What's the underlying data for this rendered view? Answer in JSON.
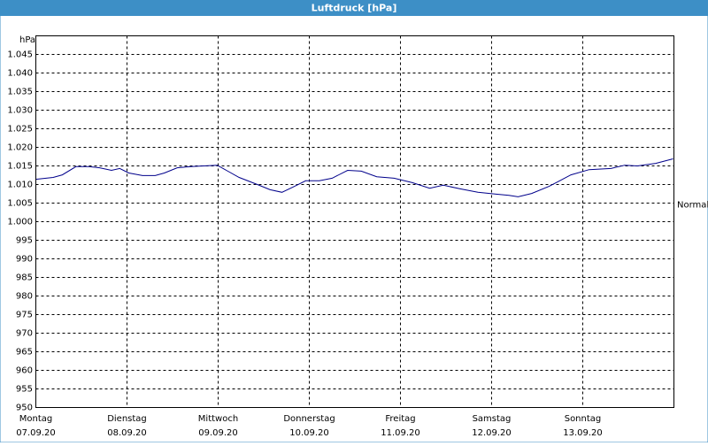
{
  "chart_data": {
    "type": "line",
    "title": "Luftdruck [hPa]",
    "y_unit": "hPa",
    "x": [
      0,
      0.19,
      0.29,
      0.44,
      0.58,
      0.7,
      0.83,
      0.92,
      1.02,
      1.17,
      1.31,
      1.41,
      1.55,
      1.7,
      1.84,
      1.99,
      2.09,
      2.23,
      2.43,
      2.57,
      2.7,
      2.82,
      2.96,
      3.11,
      3.25,
      3.42,
      3.57,
      3.74,
      3.93,
      4.13,
      4.32,
      4.47,
      4.66,
      4.85,
      5.05,
      5.19,
      5.29,
      5.44,
      5.63,
      5.87,
      6.07,
      6.31,
      6.46,
      6.6,
      6.8,
      6.99
    ],
    "series": [
      {
        "name": "Luftdruck",
        "color": "#00008b",
        "values": [
          1011.4,
          1011.9,
          1012.6,
          1014.8,
          1014.8,
          1014.5,
          1013.8,
          1014.3,
          1013.1,
          1012.4,
          1012.4,
          1013.1,
          1014.5,
          1014.8,
          1015.0,
          1015.2,
          1013.8,
          1011.9,
          1010.0,
          1008.6,
          1007.9,
          1009.3,
          1011.0,
          1011.0,
          1011.7,
          1013.8,
          1013.6,
          1012.1,
          1011.7,
          1010.5,
          1009.0,
          1009.8,
          1008.8,
          1007.9,
          1007.4,
          1007.1,
          1006.7,
          1007.6,
          1009.5,
          1012.6,
          1014.0,
          1014.3,
          1015.2,
          1015.0,
          1015.7,
          1016.9
        ]
      }
    ],
    "xlim": [
      0,
      7
    ],
    "xticks": [
      {
        "value": 0,
        "label": "Montag",
        "date": "07.09.20"
      },
      {
        "value": 1,
        "label": "Dienstag",
        "date": "08.09.20"
      },
      {
        "value": 2,
        "label": "Mittwoch",
        "date": "09.09.20"
      },
      {
        "value": 3,
        "label": "Donnerstag",
        "date": "10.09.20"
      },
      {
        "value": 4,
        "label": "Freitag",
        "date": "11.09.20"
      },
      {
        "value": 5,
        "label": "Samstag",
        "date": "12.09.20"
      },
      {
        "value": 6,
        "label": "Sonntag",
        "date": "13.09.20"
      }
    ],
    "ylim": [
      950,
      1050
    ],
    "yticks": [
      950,
      955,
      960,
      965,
      970,
      975,
      980,
      985,
      990,
      995,
      {
        "value": 1000,
        "label": "1.000"
      },
      {
        "value": 1005,
        "label": "1.005"
      },
      {
        "value": 1010,
        "label": "1.010"
      },
      {
        "value": 1015,
        "label": "1.015"
      },
      {
        "value": 1020,
        "label": "1.020"
      },
      {
        "value": 1025,
        "label": "1.025"
      },
      {
        "value": 1030,
        "label": "1.030"
      },
      {
        "value": 1035,
        "label": "1.035"
      },
      {
        "value": 1040,
        "label": "1.040"
      },
      {
        "value": 1045,
        "label": "1.045"
      }
    ],
    "grid": true,
    "reference": {
      "label": "Normal",
      "value": 1004.5
    }
  }
}
